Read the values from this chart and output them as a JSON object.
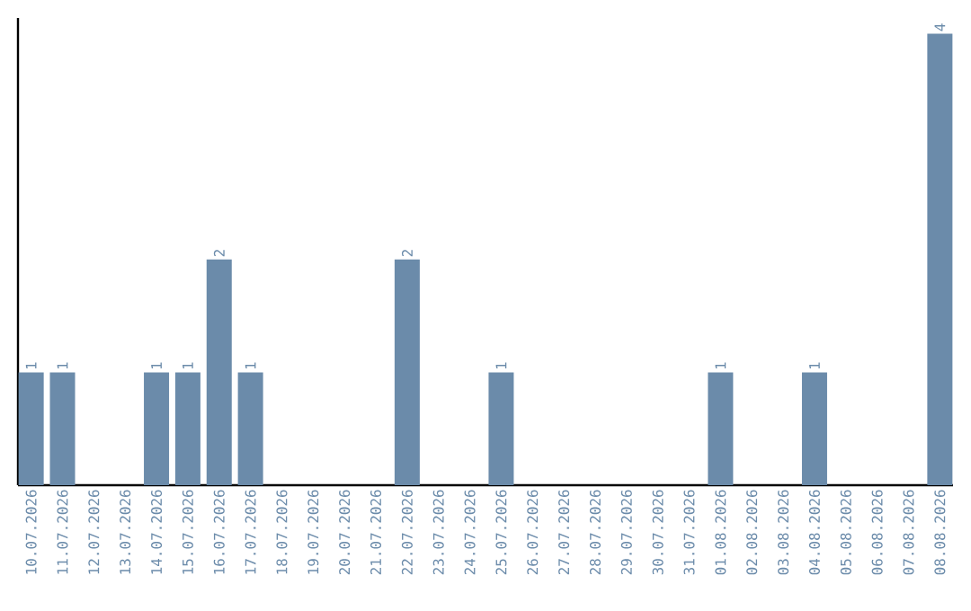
{
  "chart_data": {
    "type": "bar",
    "categories": [
      "10.07.2026",
      "11.07.2026",
      "12.07.2026",
      "13.07.2026",
      "14.07.2026",
      "15.07.2026",
      "16.07.2026",
      "17.07.2026",
      "18.07.2026",
      "19.07.2026",
      "20.07.2026",
      "21.07.2026",
      "22.07.2026",
      "23.07.2026",
      "24.07.2026",
      "25.07.2026",
      "26.07.2026",
      "27.07.2026",
      "28.07.2026",
      "29.07.2026",
      "30.07.2026",
      "31.07.2026",
      "01.08.2026",
      "02.08.2026",
      "03.08.2026",
      "04.08.2026",
      "05.08.2026",
      "06.08.2026",
      "07.08.2026",
      "08.08.2026"
    ],
    "values": [
      1,
      1,
      0,
      0,
      1,
      1,
      2,
      1,
      0,
      0,
      0,
      0,
      2,
      0,
      0,
      1,
      0,
      0,
      0,
      0,
      0,
      0,
      1,
      0,
      0,
      1,
      0,
      0,
      0,
      4
    ],
    "value_labels": [
      "1",
      "1",
      null,
      null,
      "1",
      "1",
      "2",
      "1",
      null,
      null,
      null,
      null,
      "2",
      null,
      null,
      "1",
      null,
      null,
      null,
      null,
      null,
      null,
      "1",
      null,
      null,
      "1",
      null,
      null,
      null,
      "4"
    ],
    "color": "#6b8baa"
  }
}
